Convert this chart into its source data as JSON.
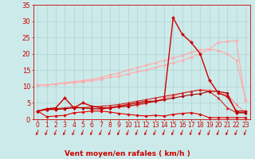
{
  "bg_color": "#cceaea",
  "grid_color": "#aacccc",
  "xlabel": "Vent moyen/en rafales ( km/h )",
  "x": [
    0,
    1,
    2,
    3,
    4,
    5,
    6,
    7,
    8,
    9,
    10,
    11,
    12,
    13,
    14,
    15,
    16,
    17,
    18,
    19,
    20,
    21,
    22,
    23
  ],
  "ylim": [
    0,
    35
  ],
  "xlim": [
    -0.5,
    23.5
  ],
  "yticks": [
    0,
    5,
    10,
    15,
    20,
    25,
    30,
    35
  ],
  "series": [
    {
      "color": "#ffaaaa",
      "linewidth": 0.8,
      "marker": "D",
      "markersize": 1.8,
      "values": [
        10.5,
        10.5,
        10.8,
        11.2,
        11.5,
        11.8,
        12.2,
        12.8,
        13.5,
        14.2,
        15.0,
        15.8,
        16.5,
        17.2,
        18.0,
        18.8,
        19.5,
        20.5,
        21.2,
        21.5,
        21.0,
        20.0,
        18.0,
        6.0
      ]
    },
    {
      "color": "#ffaaaa",
      "linewidth": 0.8,
      "marker": "D",
      "markersize": 1.8,
      "values": [
        10.5,
        10.5,
        10.8,
        11.0,
        11.2,
        11.5,
        11.8,
        12.2,
        12.8,
        13.2,
        13.8,
        14.5,
        15.0,
        15.8,
        16.5,
        17.2,
        18.0,
        19.0,
        20.0,
        21.5,
        23.5,
        23.8,
        24.0,
        5.5
      ]
    },
    {
      "color": "#ff8888",
      "linewidth": 0.8,
      "marker": "^",
      "markersize": 2.2,
      "values": [
        2.5,
        3.0,
        3.0,
        3.2,
        3.5,
        3.5,
        3.2,
        3.0,
        3.5,
        3.8,
        4.0,
        4.2,
        4.8,
        5.5,
        6.5,
        7.0,
        8.0,
        8.5,
        9.0,
        9.0,
        8.5,
        7.5,
        4.5,
        2.0
      ]
    },
    {
      "color": "#cc2222",
      "linewidth": 0.8,
      "marker": "^",
      "markersize": 2.2,
      "values": [
        2.5,
        3.0,
        3.2,
        3.5,
        3.8,
        3.5,
        3.8,
        4.0,
        4.2,
        4.5,
        5.0,
        5.5,
        6.0,
        6.5,
        7.0,
        7.5,
        8.0,
        8.5,
        9.0,
        8.5,
        6.5,
        3.5,
        2.0,
        2.0
      ]
    },
    {
      "color": "#dd0000",
      "linewidth": 0.8,
      "marker": "D",
      "markersize": 1.8,
      "values": [
        2.5,
        0.8,
        1.0,
        1.2,
        2.0,
        2.2,
        2.5,
        2.5,
        2.2,
        1.8,
        1.5,
        1.2,
        1.0,
        1.2,
        1.0,
        1.5,
        1.8,
        2.0,
        1.5,
        0.5,
        0.5,
        0.5,
        0.5,
        0.5
      ]
    },
    {
      "color": "#aa0000",
      "linewidth": 0.8,
      "marker": "D",
      "markersize": 1.8,
      "values": [
        2.5,
        3.0,
        3.0,
        3.2,
        3.5,
        3.5,
        3.2,
        3.2,
        3.5,
        3.8,
        4.0,
        4.5,
        5.0,
        5.5,
        6.0,
        6.5,
        7.0,
        7.5,
        7.8,
        8.5,
        8.5,
        8.0,
        2.0,
        2.0
      ]
    },
    {
      "color": "#cc0000",
      "linewidth": 1.0,
      "marker": "D",
      "markersize": 2.0,
      "values": [
        2.5,
        3.2,
        3.5,
        6.5,
        3.5,
        5.0,
        4.0,
        3.5,
        3.5,
        4.0,
        4.5,
        5.0,
        5.5,
        5.5,
        6.0,
        31.0,
        26.0,
        23.5,
        20.0,
        12.0,
        8.0,
        7.0,
        2.5,
        2.5
      ]
    }
  ],
  "xlabel_fontsize": 6.5,
  "tick_fontsize": 6,
  "tick_color": "#cc0000",
  "axis_color": "#cc0000",
  "arrow_color": "#cc0000"
}
